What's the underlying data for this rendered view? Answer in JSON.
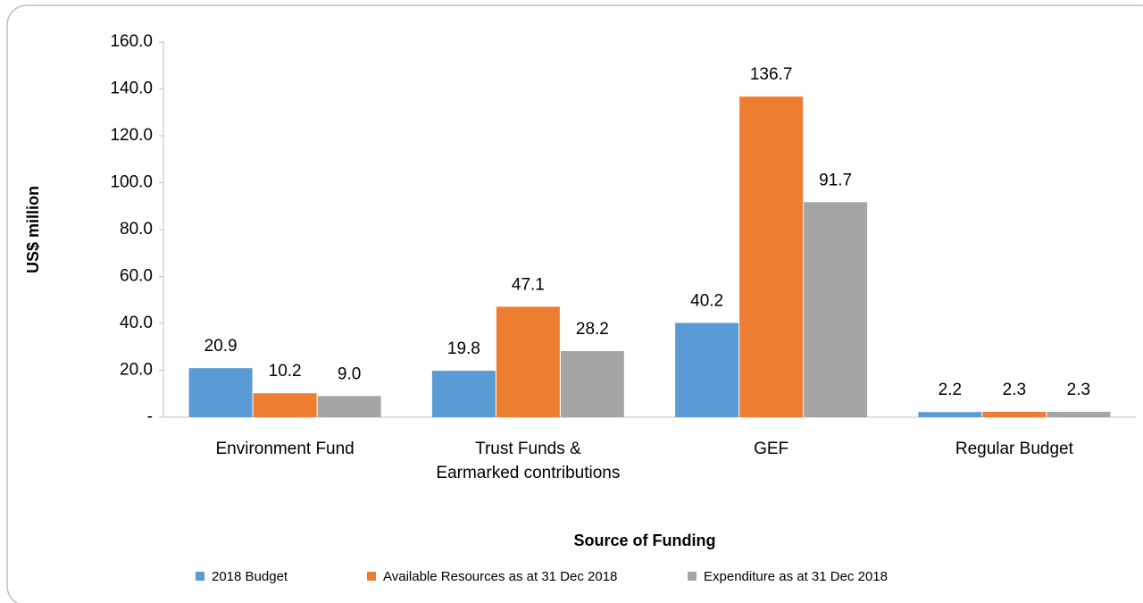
{
  "chart_data": {
    "type": "bar",
    "x_label": "Source of Funding",
    "y_label": "US$ million",
    "categories": [
      [
        "Environment Fund"
      ],
      [
        "Trust Funds &",
        "Earmarked contributions"
      ],
      [
        "GEF"
      ],
      [
        "Regular Budget"
      ]
    ],
    "series": [
      {
        "name": "2018 Budget",
        "color": "#5b9bd5",
        "values": [
          20.9,
          19.8,
          40.2,
          2.2
        ],
        "value_labels": [
          "20.9",
          "19.8",
          "40.2",
          "2.2"
        ]
      },
      {
        "name": "Available Resources as at 31 Dec 2018",
        "color": "#ed7d31",
        "values": [
          10.2,
          47.1,
          136.7,
          2.3
        ],
        "value_labels": [
          "10.2",
          "47.1",
          "136.7",
          "2.3"
        ]
      },
      {
        "name": "Expenditure as at 31 Dec 2018",
        "color": "#a5a5a5",
        "values": [
          9.0,
          28.2,
          91.7,
          2.3
        ],
        "value_labels": [
          "9.0",
          "28.2",
          "91.7",
          "2.3"
        ]
      }
    ],
    "ylim": [
      0,
      160
    ],
    "yticks": [
      {
        "value": 0,
        "label": "-"
      },
      {
        "value": 20,
        "label": "20.0"
      },
      {
        "value": 40,
        "label": "40.0"
      },
      {
        "value": 60,
        "label": "60.0"
      },
      {
        "value": 80,
        "label": "80.0"
      },
      {
        "value": 100,
        "label": "100.0"
      },
      {
        "value": 120,
        "label": "120.0"
      },
      {
        "value": 140,
        "label": "140.0"
      },
      {
        "value": 160,
        "label": "160.0"
      }
    ],
    "legend": "bottom"
  }
}
